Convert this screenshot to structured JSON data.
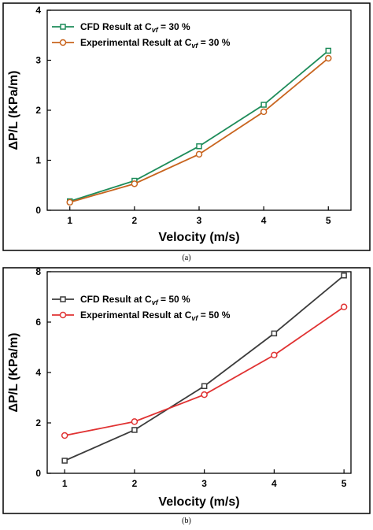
{
  "chart_data": [
    {
      "type": "line",
      "panel_label": "(a)",
      "x": [
        1,
        2,
        3,
        4,
        5
      ],
      "xlabel": "Velocity (m/s)",
      "ylabel": "ΔP/L (KPa/m)",
      "xlim": [
        0.65,
        5.35
      ],
      "ylim": [
        0,
        4
      ],
      "xticks": [
        1,
        2,
        3,
        4,
        5
      ],
      "yticks": [
        0,
        1,
        2,
        3,
        4
      ],
      "grid": false,
      "legend_position": "top-left",
      "series": [
        {
          "name": "CFD Result at C_vf = 30 %",
          "legend_prefix": "CFD Result at C",
          "legend_sub": "vf",
          "legend_suffix": " = 30 %",
          "values": [
            0.18,
            0.59,
            1.28,
            2.11,
            3.19
          ],
          "color": "#1e8c5a",
          "marker": "square"
        },
        {
          "name": "Experimental Result at C_vf = 30 %",
          "legend_prefix": "Experimental Result at C",
          "legend_sub": "vf",
          "legend_suffix": " = 30 %",
          "values": [
            0.16,
            0.53,
            1.12,
            1.97,
            3.04
          ],
          "color": "#c8641e",
          "marker": "circle"
        }
      ]
    },
    {
      "type": "line",
      "panel_label": "(b)",
      "x": [
        1,
        2,
        3,
        4,
        5
      ],
      "xlabel": "Velocity (m/s)",
      "ylabel": "ΔP/L (KPa/m)",
      "xlim": [
        0.75,
        5.1
      ],
      "ylim": [
        0,
        8
      ],
      "xticks": [
        1,
        2,
        3,
        4,
        5
      ],
      "yticks": [
        0,
        2,
        4,
        6,
        8
      ],
      "grid": false,
      "legend_position": "top-left",
      "series": [
        {
          "name": "CFD Result at C_vf = 50 %",
          "legend_prefix": "CFD Result at C",
          "legend_sub": "vf",
          "legend_suffix": " = 50 %",
          "values": [
            0.5,
            1.72,
            3.46,
            5.55,
            7.85
          ],
          "color": "#3c3c3c",
          "marker": "square"
        },
        {
          "name": "Experimental Result at C_vf = 50 %",
          "legend_prefix": "Experimental Result at C",
          "legend_sub": "vf",
          "legend_suffix": " = 50 %",
          "values": [
            1.5,
            2.05,
            3.12,
            4.69,
            6.6
          ],
          "color": "#e03232",
          "marker": "circle"
        }
      ]
    }
  ]
}
